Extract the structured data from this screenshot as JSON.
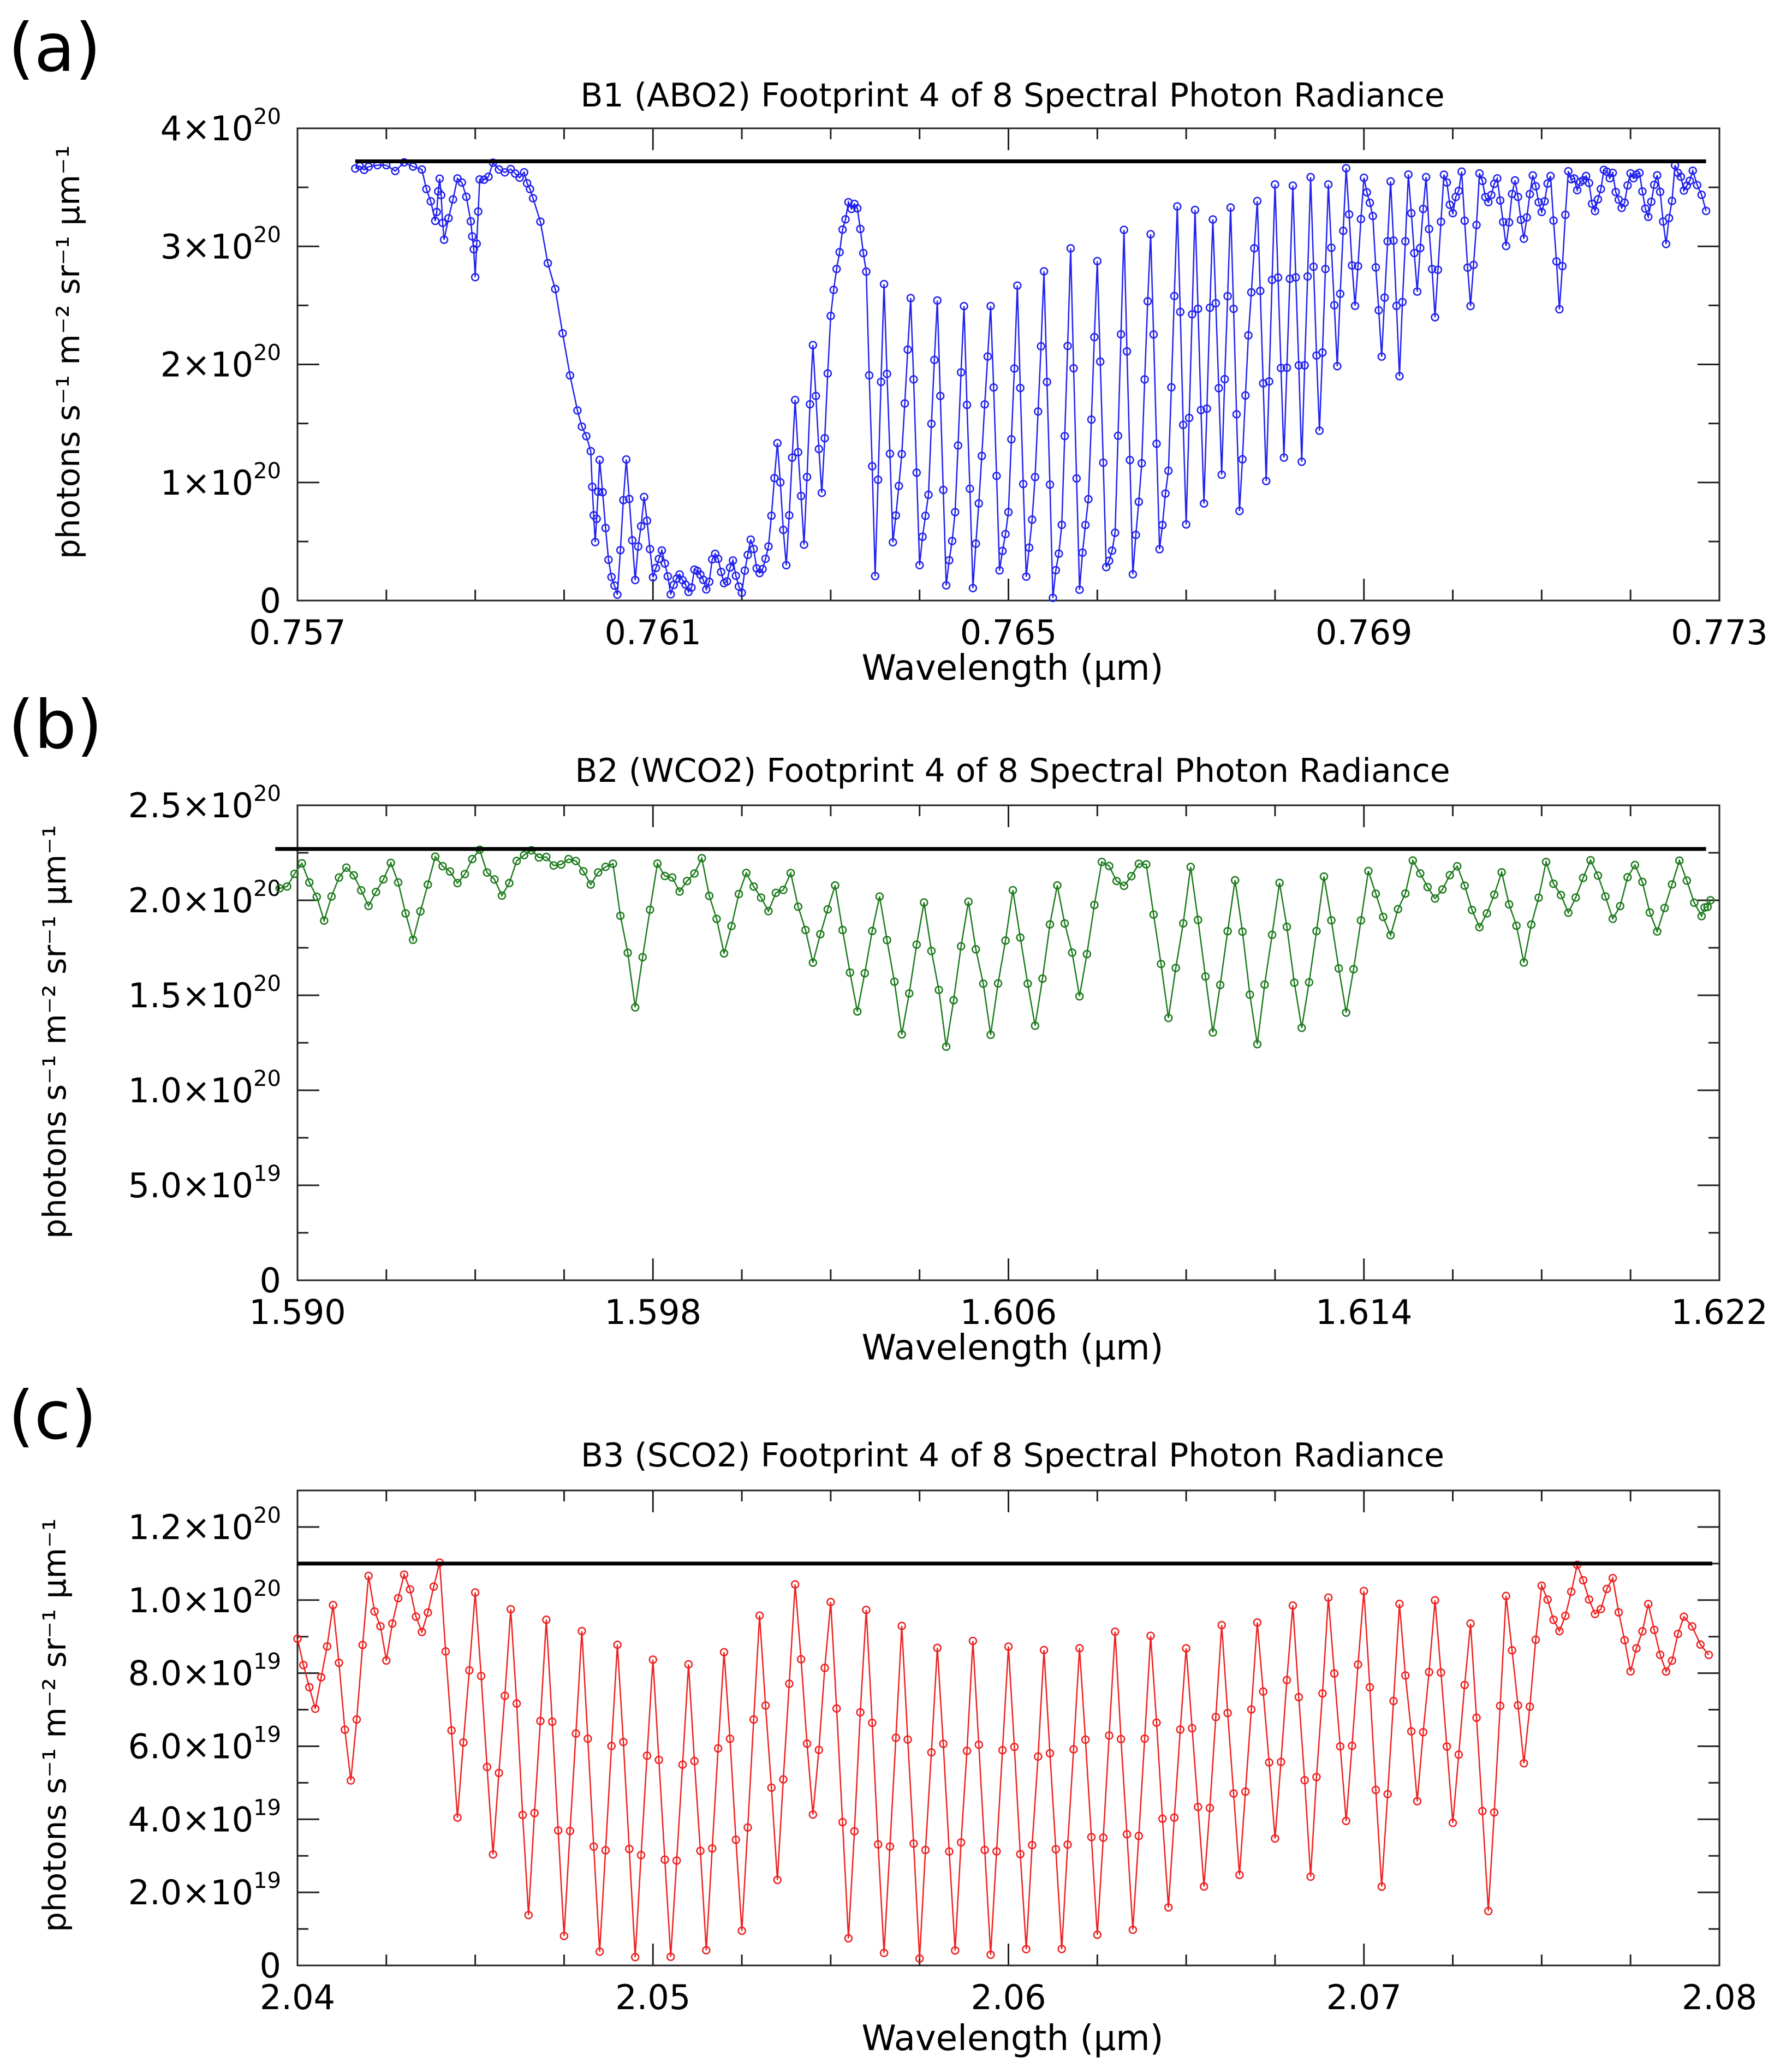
{
  "chart_data": [
    {
      "type": "line",
      "panel_label": "(a)",
      "title": "B1 (ABO2) Footprint 4 of 8 Spectral Photon Radiance",
      "xlabel": "Wavelength (μm)",
      "ylabel": "photons s⁻¹ m⁻² sr⁻¹ μm⁻¹",
      "xlim": [
        0.757,
        0.773
      ],
      "ylim": [
        0,
        4e+20
      ],
      "xticks": [
        {
          "value": 0.757,
          "label": "0.757"
        },
        {
          "value": 0.761,
          "label": "0.761"
        },
        {
          "value": 0.765,
          "label": "0.765"
        },
        {
          "value": 0.769,
          "label": "0.769"
        },
        {
          "value": 0.773,
          "label": "0.773"
        }
      ],
      "yticks": [
        {
          "value": 0,
          "mant": "0",
          "exp": ""
        },
        {
          "value": 1e+20,
          "mant": "1×10",
          "exp": "20"
        },
        {
          "value": 2e+20,
          "mant": "2×10",
          "exp": "20"
        },
        {
          "value": 3e+20,
          "mant": "3×10",
          "exp": "20"
        },
        {
          "value": 4e+20,
          "mant": "4×10",
          "exp": "20"
        }
      ],
      "reference_line": {
        "value": 3.72e+20,
        "x_range": [
          0.75765,
          0.77285
        ],
        "color": "#000000"
      },
      "series_color": "#2222ee",
      "series_range": [
        0.75765,
        0.77285
      ],
      "series": [
        {
          "name": "B1 radiance",
          "x": [
            0.75765,
            0.7578,
            0.7581,
            0.7584,
            0.75855,
            0.7586,
            0.75865,
            0.7588,
            0.75895,
            0.759,
            0.75905,
            0.7592,
            0.7594,
            0.75955,
            0.75965,
            0.7599,
            0.76015,
            0.7603,
            0.76035,
            0.7604,
            0.7605,
            0.7606,
            0.7607,
            0.7608,
            0.7609,
            0.761,
            0.7611,
            0.7612,
            0.7613,
            0.7614,
            0.7615,
            0.7616,
            0.7617,
            0.7618,
            0.7619,
            0.762,
            0.7621,
            0.7622,
            0.7623,
            0.7624,
            0.7625,
            0.7626,
            0.7627,
            0.7628,
            0.7629,
            0.763,
            0.7631,
            0.7632,
            0.7633,
            0.7634,
            0.7635,
            0.7636,
            0.7637,
            0.7638,
            0.7639,
            0.764,
            0.7641,
            0.7642,
            0.7643,
            0.7644,
            0.7645,
            0.7646,
            0.7647,
            0.7648,
            0.7649,
            0.765,
            0.7651,
            0.7652,
            0.7653,
            0.7654,
            0.7655,
            0.7656,
            0.7657,
            0.7658,
            0.7659,
            0.766,
            0.7661,
            0.7662,
            0.7663,
            0.7664,
            0.7665,
            0.7666,
            0.7667,
            0.7668,
            0.7669,
            0.767,
            0.7671,
            0.7672,
            0.7673,
            0.7674,
            0.7675,
            0.7676,
            0.7677,
            0.7678,
            0.7679,
            0.768,
            0.7681,
            0.7682,
            0.7683,
            0.7684,
            0.7685,
            0.7686,
            0.7687,
            0.7688,
            0.7689,
            0.769,
            0.7691,
            0.7692,
            0.7693,
            0.7694,
            0.7695,
            0.7696,
            0.7697,
            0.7698,
            0.7699,
            0.77,
            0.7701,
            0.7702,
            0.7703,
            0.7704,
            0.7705,
            0.7706,
            0.7707,
            0.7708,
            0.7709,
            0.771,
            0.7711,
            0.7712,
            0.7713,
            0.7714,
            0.7715,
            0.7716,
            0.7717,
            0.7718,
            0.7719,
            0.772,
            0.7721,
            0.7722,
            0.7723,
            0.7724,
            0.7725,
            0.7726,
            0.7727,
            0.77285
          ],
          "y": [
            3.66e+20,
            3.7e+20,
            3.68e+20,
            3.66e+20,
            3.2e+20,
            3.6e+20,
            3.05e+20,
            3.62e+20,
            3.25e+20,
            2.77e+20,
            3.55e+20,
            3.66e+20,
            3.65e+20,
            3.6e+20,
            3.45e+20,
            2.6e+20,
            1.6e+20,
            1.25e+20,
            5e+19,
            1.2e+20,
            3e+19,
            5e+18,
            1.2e+20,
            2e+19,
            9e+19,
            1.5e+19,
            4e+19,
            1e+19,
            2.5e+19,
            5e+18,
            3e+19,
            1e+19,
            4e+19,
            1.5e+19,
            3e+19,
            1e+19,
            5e+19,
            2e+19,
            5e+19,
            1.3e+20,
            3e+19,
            1.7e+20,
            5e+19,
            2.2e+20,
            9e+19,
            2.45e+20,
            3e+20,
            3.35e+20,
            3.3e+20,
            2.8e+20,
            2.5e+19,
            2.7e+20,
            5e+19,
            1.2e+20,
            2.6e+20,
            3e+19,
            9e+19,
            2.55e+20,
            1e+19,
            7e+19,
            2.5e+20,
            1e+19,
            1.2e+20,
            2.5e+20,
            3e+19,
            7e+19,
            2.65e+20,
            2e+19,
            1e+20,
            2.8e+20,
            5e+18,
            6e+19,
            2.95e+20,
            1e+19,
            9e+19,
            2.9e+20,
            3e+19,
            5.5e+19,
            3.1e+20,
            2.5e+19,
            1.2e+20,
            3.15e+20,
            4.5e+19,
            1.1e+20,
            3.3e+20,
            6e+19,
            3.35e+20,
            8e+19,
            3.25e+20,
            1.1e+20,
            3.3e+20,
            7.5e+19,
            2.2e+20,
            3.4e+20,
            1.05e+20,
            3.5e+20,
            1.2e+20,
            3.55e+20,
            1.15e+20,
            3.55e+20,
            1.4e+20,
            3.55e+20,
            2e+20,
            3.65e+20,
            2.5e+20,
            3.6e+20,
            3.25e+20,
            2.05e+20,
            3.6e+20,
            1.95e+20,
            3.65e+20,
            2.6e+20,
            3.62e+20,
            2.35e+20,
            3.6e+20,
            3.3e+20,
            3.62e+20,
            2.45e+20,
            3.6e+20,
            3.4e+20,
            3.62e+20,
            3e+20,
            3.6e+20,
            3.1e+20,
            3.64e+20,
            3.3e+20,
            3.6e+20,
            2.45e+20,
            3.64e+20,
            3.5e+20,
            3.6e+20,
            3.3e+20,
            3.62e+20,
            3.6e+20,
            3.3e+20,
            3.64e+20,
            3.6e+20,
            3.25e+20,
            3.65e+20,
            3e+20,
            3.64e+20,
            3.5e+20,
            3.6e+20,
            3.3e+20
          ]
        }
      ]
    },
    {
      "type": "line",
      "panel_label": "(b)",
      "title": "B2 (WCO2) Footprint 4 of 8 Spectral Photon Radiance",
      "xlabel": "Wavelength (μm)",
      "ylabel": "photons s⁻¹ m⁻² sr⁻¹ μm⁻¹",
      "xlim": [
        1.59,
        1.622
      ],
      "ylim": [
        0,
        2.5e+20
      ],
      "xticks": [
        {
          "value": 1.59,
          "label": "1.590"
        },
        {
          "value": 1.598,
          "label": "1.598"
        },
        {
          "value": 1.606,
          "label": "1.606"
        },
        {
          "value": 1.614,
          "label": "1.614"
        },
        {
          "value": 1.622,
          "label": "1.622"
        }
      ],
      "yticks": [
        {
          "value": 0,
          "mant": "0",
          "exp": ""
        },
        {
          "value": 5e+19,
          "mant": "5.0×10",
          "exp": "19"
        },
        {
          "value": 1e+20,
          "mant": "1.0×10",
          "exp": "20"
        },
        {
          "value": 1.5e+20,
          "mant": "1.5×10",
          "exp": "20"
        },
        {
          "value": 2e+20,
          "mant": "2.0×10",
          "exp": "20"
        },
        {
          "value": 2.5e+20,
          "mant": "2.5×10",
          "exp": "20"
        }
      ],
      "reference_line": {
        "value": 2.27e+20,
        "x_range": [
          1.5895,
          1.6217
        ],
        "color": "#000000"
      },
      "series_color": "#1e7b1e",
      "series_range": [
        1.5896,
        1.6218
      ],
      "series": [
        {
          "name": "B2 radiance",
          "x": [
            1.5896,
            1.5901,
            1.5906,
            1.5911,
            1.5916,
            1.5921,
            1.5926,
            1.5931,
            1.5936,
            1.5941,
            1.5946,
            1.5951,
            1.5956,
            1.5961,
            1.5966,
            1.5971,
            1.5976,
            1.5981,
            1.5986,
            1.5991,
            1.5996,
            1.6001,
            1.6006,
            1.6011,
            1.6016,
            1.6021,
            1.6026,
            1.6031,
            1.6036,
            1.6041,
            1.6046,
            1.6051,
            1.6056,
            1.6061,
            1.6066,
            1.6071,
            1.6076,
            1.6081,
            1.6086,
            1.6091,
            1.6096,
            1.6101,
            1.6106,
            1.6111,
            1.6116,
            1.6121,
            1.6126,
            1.6131,
            1.6136,
            1.6141,
            1.6146,
            1.6151,
            1.6156,
            1.6161,
            1.6166,
            1.6171,
            1.6176,
            1.6181,
            1.6186,
            1.6191,
            1.6196,
            1.6201,
            1.6206,
            1.6211,
            1.6216,
            1.6218
          ],
          "y": [
            2.05e+20,
            2.2e+20,
            1.9e+20,
            2.2e+20,
            1.95e+20,
            2.22e+20,
            1.8e+20,
            2.2e+20,
            2.1e+20,
            2.24e+20,
            2.05e+20,
            2.25e+20,
            2.2e+20,
            2.22e+20,
            2.1e+20,
            2.18e+20,
            1.45e+20,
            2.2e+20,
            2.05e+20,
            2.2e+20,
            1.75e+20,
            2.15e+20,
            1.95e+20,
            2.15e+20,
            1.65e+20,
            2.1e+20,
            1.4e+20,
            2.05e+20,
            1.3e+20,
            2e+20,
            1.25e+20,
            2e+20,
            1.3e+20,
            2.05e+20,
            1.35e+20,
            2.1e+20,
            1.5e+20,
            2.2e+20,
            2.05e+20,
            2.22e+20,
            1.4e+20,
            2.15e+20,
            1.3e+20,
            2.1e+20,
            1.25e+20,
            2.1e+20,
            1.3e+20,
            2.12e+20,
            1.4e+20,
            2.15e+20,
            1.8e+20,
            2.2e+20,
            2e+20,
            2.2e+20,
            1.85e+20,
            2.15e+20,
            1.7e+20,
            2.18e+20,
            1.95e+20,
            2.2e+20,
            1.9e+20,
            2.2e+20,
            1.85e+20,
            2.18e+20,
            1.9e+20,
            2e+20
          ]
        }
      ]
    },
    {
      "type": "line",
      "panel_label": "(c)",
      "title": "B3 (SCO2) Footprint 4 of 8 Spectral Photon Radiance",
      "xlabel": "Wavelength (μm)",
      "ylabel": "photons s⁻¹ m⁻² sr⁻¹ μm⁻¹",
      "xlim": [
        2.04,
        2.08
      ],
      "ylim": [
        0,
        1.3e+20
      ],
      "xticks": [
        {
          "value": 2.04,
          "label": "2.04"
        },
        {
          "value": 2.05,
          "label": "2.05"
        },
        {
          "value": 2.06,
          "label": "2.06"
        },
        {
          "value": 2.07,
          "label": "2.07"
        },
        {
          "value": 2.08,
          "label": "2.08"
        }
      ],
      "yticks": [
        {
          "value": 0,
          "mant": "0",
          "exp": ""
        },
        {
          "value": 2e+19,
          "mant": "2.0×10",
          "exp": "19"
        },
        {
          "value": 4e+19,
          "mant": "4.0×10",
          "exp": "19"
        },
        {
          "value": 6e+19,
          "mant": "6.0×10",
          "exp": "19"
        },
        {
          "value": 8e+19,
          "mant": "8.0×10",
          "exp": "19"
        },
        {
          "value": 1e+20,
          "mant": "1.0×10",
          "exp": "20"
        },
        {
          "value": 1.2e+20,
          "mant": "1.2×10",
          "exp": "20"
        }
      ],
      "reference_line": {
        "value": 1.1e+20,
        "x_range": [
          2.04,
          2.0798
        ],
        "color": "#000000"
      },
      "series_color": "#ee2222",
      "series_range": [
        2.04,
        2.0797
      ],
      "series": [
        {
          "name": "B3 radiance",
          "x": [
            2.04,
            2.0405,
            2.041,
            2.0415,
            2.042,
            2.0425,
            2.043,
            2.0435,
            2.044,
            2.0445,
            2.045,
            2.0455,
            2.046,
            2.0465,
            2.047,
            2.0475,
            2.048,
            2.0485,
            2.049,
            2.0495,
            2.05,
            2.0505,
            2.051,
            2.0515,
            2.052,
            2.0525,
            2.053,
            2.0535,
            2.054,
            2.0545,
            2.055,
            2.0555,
            2.056,
            2.0565,
            2.057,
            2.0575,
            2.058,
            2.0585,
            2.059,
            2.0595,
            2.06,
            2.0605,
            2.061,
            2.0615,
            2.062,
            2.0625,
            2.063,
            2.0635,
            2.064,
            2.0645,
            2.065,
            2.0655,
            2.066,
            2.0665,
            2.067,
            2.0675,
            2.068,
            2.0685,
            2.069,
            2.0695,
            2.07,
            2.0705,
            2.071,
            2.0715,
            2.072,
            2.0725,
            2.073,
            2.0735,
            2.074,
            2.0745,
            2.075,
            2.0755,
            2.076,
            2.0765,
            2.077,
            2.0775,
            2.078,
            2.0785,
            2.079,
            2.0797
          ],
          "y": [
            8.8e+19,
            7e+19,
            9.8e+19,
            5e+19,
            1.05e+20,
            8.5e+19,
            1.08e+20,
            9e+19,
            1.1e+20,
            4e+19,
            1.02e+20,
            3e+19,
            9.8e+19,
            1.5e+19,
            9.5e+19,
            8e+18,
            9e+19,
            5e+18,
            8.8e+19,
            3e+18,
            8.5e+19,
            3e+18,
            8.3e+19,
            4e+18,
            8.6e+19,
            1e+19,
            9.5e+19,
            2.5e+19,
            1.04e+20,
            4e+19,
            1e+20,
            8e+18,
            9.8e+19,
            3e+18,
            9.2e+19,
            3e+18,
            8.8e+19,
            5e+18,
            8.8e+19,
            4e+18,
            8.6e+19,
            5e+18,
            8.5e+19,
            6e+18,
            8.8e+19,
            8e+18,
            9e+19,
            1e+19,
            9e+19,
            1.5e+19,
            8.7e+19,
            2e+19,
            9.2e+19,
            2.5e+19,
            9.5e+19,
            3.5e+19,
            9.8e+19,
            2.5e+19,
            1e+20,
            4e+19,
            1.02e+20,
            2e+19,
            9.8e+19,
            4.5e+19,
            1e+20,
            4e+19,
            9.5e+19,
            1.5e+19,
            1e+20,
            5.5e+19,
            1.05e+20,
            9e+19,
            1.1e+20,
            9.5e+19,
            1.05e+20,
            8e+19,
            9.8e+19,
            8e+19,
            9.5e+19,
            8.5e+19
          ]
        }
      ]
    }
  ]
}
